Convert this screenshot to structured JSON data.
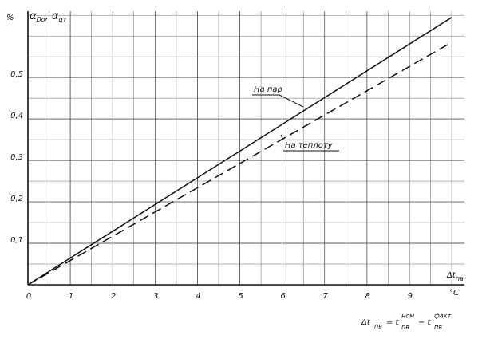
{
  "chart_data": {
    "type": "line",
    "y_unit": "%",
    "y_label": [
      "α",
      "Dо",
      ", α",
      "qт"
    ],
    "x_label": [
      "Δt",
      "пв"
    ],
    "x_unit": "°C",
    "formula": [
      "Δt",
      "пв",
      "= t",
      "пв",
      "ном",
      "− t",
      "пв",
      "факт"
    ],
    "x": [
      0,
      10
    ],
    "series": [
      {
        "name": "На пар",
        "color": "#111111",
        "dashed": false,
        "values": [
          0,
          0.645
        ]
      },
      {
        "name": "На теплоту",
        "color": "#111111",
        "dashed": true,
        "values": [
          0,
          0.585
        ]
      }
    ],
    "xlim": [
      0,
      10.3
    ],
    "ylim": [
      0,
      0.66
    ],
    "xticks": [
      0,
      1,
      2,
      3,
      4,
      5,
      6,
      7,
      8,
      9
    ],
    "yticks": [
      {
        "value": 0.1,
        "label": "0,1"
      },
      {
        "value": 0.2,
        "label": "0,2"
      },
      {
        "value": 0.3,
        "label": "0,3"
      },
      {
        "value": 0.4,
        "label": "0,4"
      },
      {
        "value": 0.5,
        "label": "0,5"
      }
    ],
    "grid": true,
    "minor_divisions": 2
  }
}
